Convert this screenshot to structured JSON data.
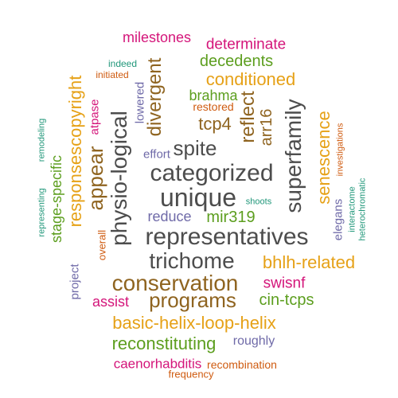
{
  "word_cloud": {
    "words": [
      "milestones",
      "determinate",
      "indeed",
      "decedents",
      "initiated",
      "conditioned",
      "brahma",
      "lowered",
      "restored",
      "tcp4",
      "divergent",
      "reflect",
      "arr16",
      "spite",
      "effort",
      "superfamily",
      "senescence",
      "investigations",
      "categorized",
      "unique",
      "shoots",
      "atpase",
      "appear",
      "responsescopyright",
      "physio-logical",
      "remodeling",
      "stage-specific",
      "representing",
      "interactome",
      "heterochromatic",
      "elegans",
      "reduce",
      "mir319",
      "representatives",
      "overall",
      "trichome",
      "bhlh-related",
      "project",
      "conservation",
      "swisnf",
      "assist",
      "programs",
      "cin-tcps",
      "basic-helix-loop-helix",
      "reconstituting",
      "roughly",
      "caenorhabditis",
      "recombination",
      "frequency"
    ]
  }
}
